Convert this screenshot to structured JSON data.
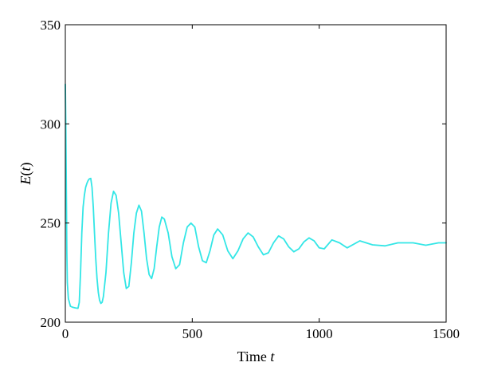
{
  "chart_data": {
    "type": "line",
    "title": "",
    "xlabel": {
      "main": "Time ",
      "italic": "t"
    },
    "ylabel": {
      "italic1": "E",
      "paren_open": "(",
      "italic2": "t",
      "paren_close": ")"
    },
    "xlim": [
      0,
      1500
    ],
    "ylim": [
      200,
      350
    ],
    "x_ticks": [
      0,
      500,
      1000,
      1500
    ],
    "x_tick_labels": [
      "0",
      "500",
      "1000",
      "1500"
    ],
    "y_ticks": [
      200,
      250,
      300,
      350
    ],
    "y_tick_labels": [
      "200",
      "250",
      "300",
      "350"
    ],
    "grid": false,
    "series": [
      {
        "color": "#33e6e6",
        "x": [
          0,
          2,
          4,
          6,
          8,
          12,
          20,
          30,
          40,
          50,
          55,
          60,
          65,
          70,
          75,
          80,
          85,
          90,
          95,
          100,
          105,
          110,
          115,
          120,
          125,
          130,
          135,
          140,
          145,
          150,
          160,
          170,
          180,
          190,
          200,
          210,
          220,
          230,
          240,
          250,
          260,
          270,
          280,
          290,
          300,
          310,
          320,
          330,
          340,
          350,
          360,
          370,
          380,
          390,
          405,
          420,
          435,
          450,
          465,
          480,
          495,
          510,
          525,
          540,
          555,
          570,
          585,
          600,
          620,
          640,
          660,
          680,
          700,
          720,
          740,
          760,
          780,
          800,
          820,
          840,
          860,
          880,
          900,
          920,
          940,
          960,
          980,
          1000,
          1020,
          1050,
          1080,
          1110,
          1160,
          1210,
          1260,
          1310,
          1370,
          1420,
          1470,
          1500
        ],
        "y": [
          320,
          300,
          265,
          235,
          220,
          212,
          208,
          207.5,
          207.2,
          207,
          210,
          225,
          245,
          258,
          264,
          268,
          270,
          271.5,
          272.3,
          272.5,
          268,
          258,
          245,
          232,
          222,
          215,
          211,
          209.5,
          210,
          213,
          225,
          245,
          260,
          266,
          264,
          255,
          240,
          225,
          217,
          218,
          230,
          245,
          255,
          259,
          256,
          245,
          232,
          224,
          222,
          227,
          238,
          248,
          253,
          252,
          245,
          233,
          227,
          229,
          240,
          248,
          250,
          248,
          238,
          231,
          230,
          236,
          244,
          247,
          244,
          236,
          232,
          236,
          242,
          245,
          243,
          238,
          234,
          235,
          240,
          243.5,
          242,
          238,
          235.5,
          237,
          240.5,
          242.5,
          241,
          237.5,
          237,
          241.5,
          240,
          237.5,
          241,
          239,
          238.5,
          240,
          240,
          238.8,
          240,
          240
        ]
      }
    ]
  }
}
